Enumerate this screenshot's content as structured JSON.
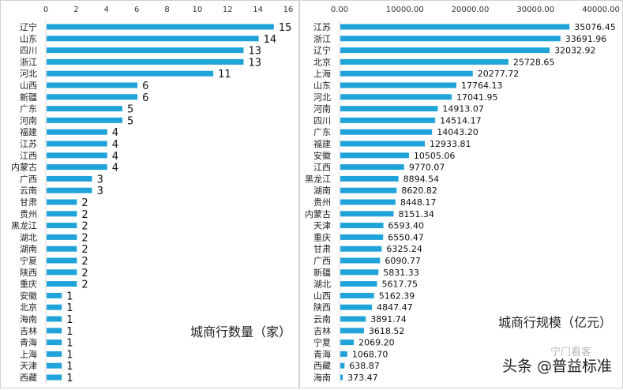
{
  "chart_data": [
    {
      "type": "bar",
      "orientation": "horizontal",
      "title": "城商行数量（家）",
      "xlim": [
        0,
        16
      ],
      "xticks": [
        "0",
        "2",
        "4",
        "6",
        "8",
        "10",
        "12",
        "14",
        "16"
      ],
      "categories": [
        "辽宁",
        "山东",
        "四川",
        "浙江",
        "河北",
        "山西",
        "新疆",
        "广东",
        "河南",
        "福建",
        "江苏",
        "江西",
        "内蒙古",
        "广西",
        "云南",
        "甘肃",
        "贵州",
        "黑龙江",
        "湖北",
        "湖南",
        "宁夏",
        "陕西",
        "重庆",
        "安徽",
        "北京",
        "海南",
        "吉林",
        "青海",
        "上海",
        "天津",
        "西藏"
      ],
      "values": [
        15,
        14,
        13,
        13,
        11,
        6,
        6,
        5,
        5,
        4,
        4,
        4,
        4,
        3,
        3,
        2,
        2,
        2,
        2,
        2,
        2,
        2,
        2,
        1,
        1,
        1,
        1,
        1,
        1,
        1,
        1
      ],
      "labels": [
        "15",
        "14",
        "13",
        "13",
        "11",
        "6",
        "6",
        "5",
        "5",
        "4",
        "4",
        "4",
        "4",
        "3",
        "3",
        "2",
        "2",
        "2",
        "2",
        "2",
        "2",
        "2",
        "2",
        "1",
        "1",
        "1",
        "1",
        "1",
        "1",
        "1",
        "1"
      ],
      "color": "#1fa3d9",
      "grid": false
    },
    {
      "type": "bar",
      "orientation": "horizontal",
      "title": "城商行规模（亿元）",
      "xlim": [
        0,
        40000
      ],
      "xticks": [
        "0.00",
        "10000.00",
        "20000.00",
        "30000.00",
        "40000.00"
      ],
      "categories": [
        "江苏",
        "浙江",
        "辽宁",
        "北京",
        "上海",
        "山东",
        "河北",
        "河南",
        "四川",
        "广东",
        "福建",
        "安徽",
        "江西",
        "黑龙江",
        "湖南",
        "贵州",
        "内蒙古",
        "天津",
        "重庆",
        "甘肃",
        "广西",
        "新疆",
        "湖北",
        "山西",
        "陕西",
        "云南",
        "吉林",
        "宁夏",
        "青海",
        "西藏",
        "海南"
      ],
      "values": [
        35076.45,
        33691.96,
        32032.92,
        25728.65,
        20277.72,
        17764.13,
        17041.95,
        14913.07,
        14514.17,
        14043.2,
        12933.81,
        10505.06,
        9770.07,
        8894.54,
        8620.82,
        8448.17,
        8151.34,
        6593.4,
        6550.47,
        6325.24,
        6090.77,
        5831.33,
        5617.75,
        5162.39,
        4847.47,
        3891.74,
        3618.52,
        2069.2,
        1068.7,
        638.87,
        373.47
      ],
      "labels": [
        "35076.45",
        "33691.96",
        "32032.92",
        "25728.65",
        "20277.72",
        "17764.13",
        "17041.95",
        "14913.07",
        "14514.17",
        "14043.20",
        "12933.81",
        "10505.06",
        "9770.07",
        "8894.54",
        "8620.82",
        "8448.17",
        "8151.34",
        "6593.40",
        "6550.47",
        "6325.24",
        "6090.77",
        "5831.33",
        "5617.75",
        "5162.39",
        "4847.47",
        "3891.74",
        "3618.52",
        "2069.20",
        "1068.70",
        "638.87",
        "373.47"
      ],
      "color": "#1fa3d9",
      "grid": false
    }
  ],
  "watermark": {
    "text": "头条 @普益标准",
    "faint": "宁门看客"
  }
}
